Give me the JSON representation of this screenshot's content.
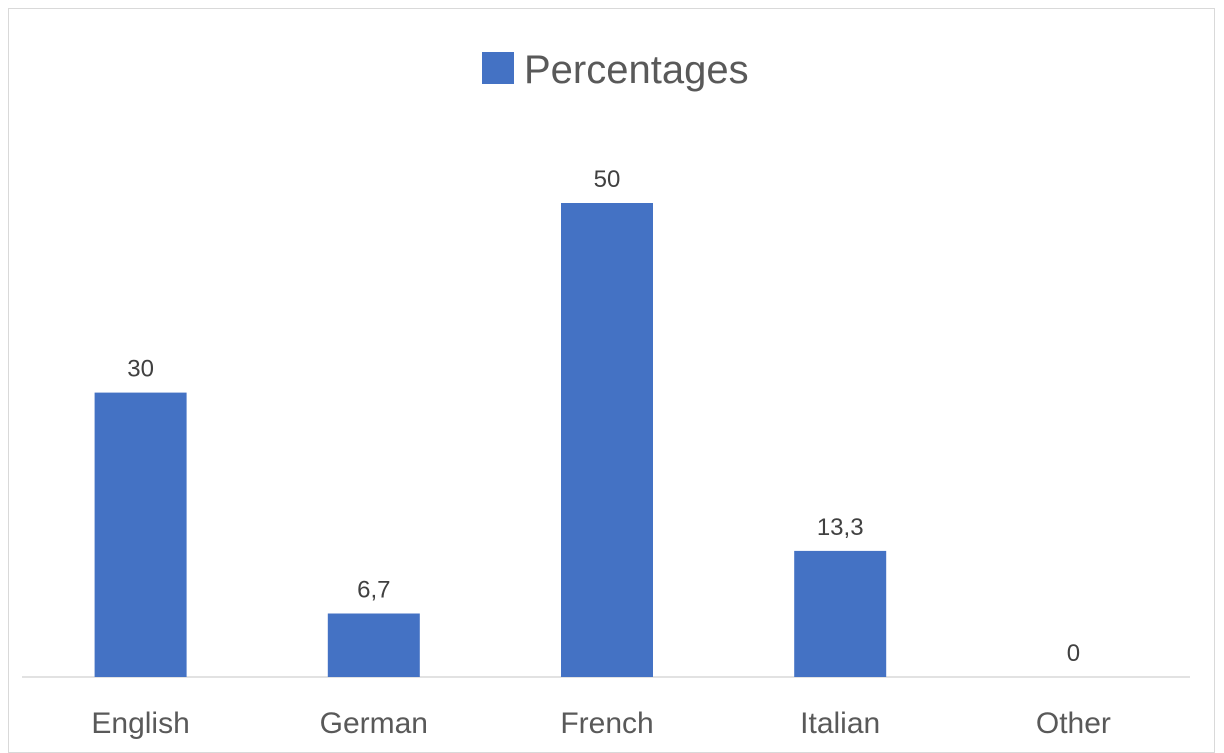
{
  "chart_data": {
    "type": "bar",
    "categories": [
      "English",
      "German",
      "French",
      "Italian",
      "Other"
    ],
    "series": [
      {
        "name": "Percentages",
        "values": [
          30,
          6.7,
          50,
          13.3,
          0
        ],
        "data_labels": [
          "30",
          "6,7",
          "50",
          "13,3",
          "0"
        ],
        "color": "#4472c4"
      }
    ],
    "title": "",
    "xlabel": "",
    "ylabel": "",
    "ylim": [
      0,
      60
    ],
    "grid": false,
    "legend": "top-center",
    "axis_color": "#d9d9d9"
  }
}
